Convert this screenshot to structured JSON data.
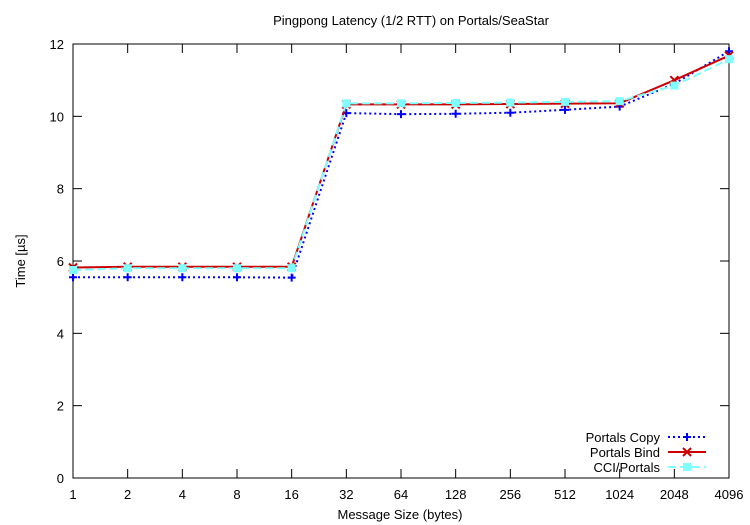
{
  "chart_data": {
    "type": "line",
    "title": "Pingpong Latency (1/2 RTT) on Portals/SeaStar",
    "xlabel": "Message Size (bytes)",
    "ylabel": "Time [µs]",
    "categories": [
      "1",
      "2",
      "4",
      "8",
      "16",
      "32",
      "64",
      "128",
      "256",
      "512",
      "1024",
      "2048",
      "4096"
    ],
    "ylim": [
      0,
      12
    ],
    "yticks": [
      0,
      2,
      4,
      6,
      8,
      10,
      12
    ],
    "grid": false,
    "legend_position": "bottom-right",
    "series": [
      {
        "name": "Portals Copy",
        "color": "#0000ff",
        "line_style": "dotted",
        "marker": "plus",
        "values": [
          5.55,
          5.55,
          5.55,
          5.55,
          5.54,
          10.09,
          10.06,
          10.07,
          10.1,
          10.18,
          10.27,
          10.9,
          11.8
        ]
      },
      {
        "name": "Portals Bind",
        "color": "#cc0000",
        "line_style": "solid",
        "marker": "cross",
        "values": [
          5.82,
          5.84,
          5.84,
          5.84,
          5.84,
          10.33,
          10.33,
          10.33,
          10.34,
          10.35,
          10.36,
          11.0,
          11.68
        ]
      },
      {
        "name": "CCI/Portals",
        "color": "#7fffff",
        "line_style": "dashed",
        "marker": "square",
        "values": [
          5.75,
          5.8,
          5.8,
          5.8,
          5.8,
          10.36,
          10.36,
          10.37,
          10.38,
          10.4,
          10.42,
          10.85,
          11.58
        ]
      }
    ]
  }
}
